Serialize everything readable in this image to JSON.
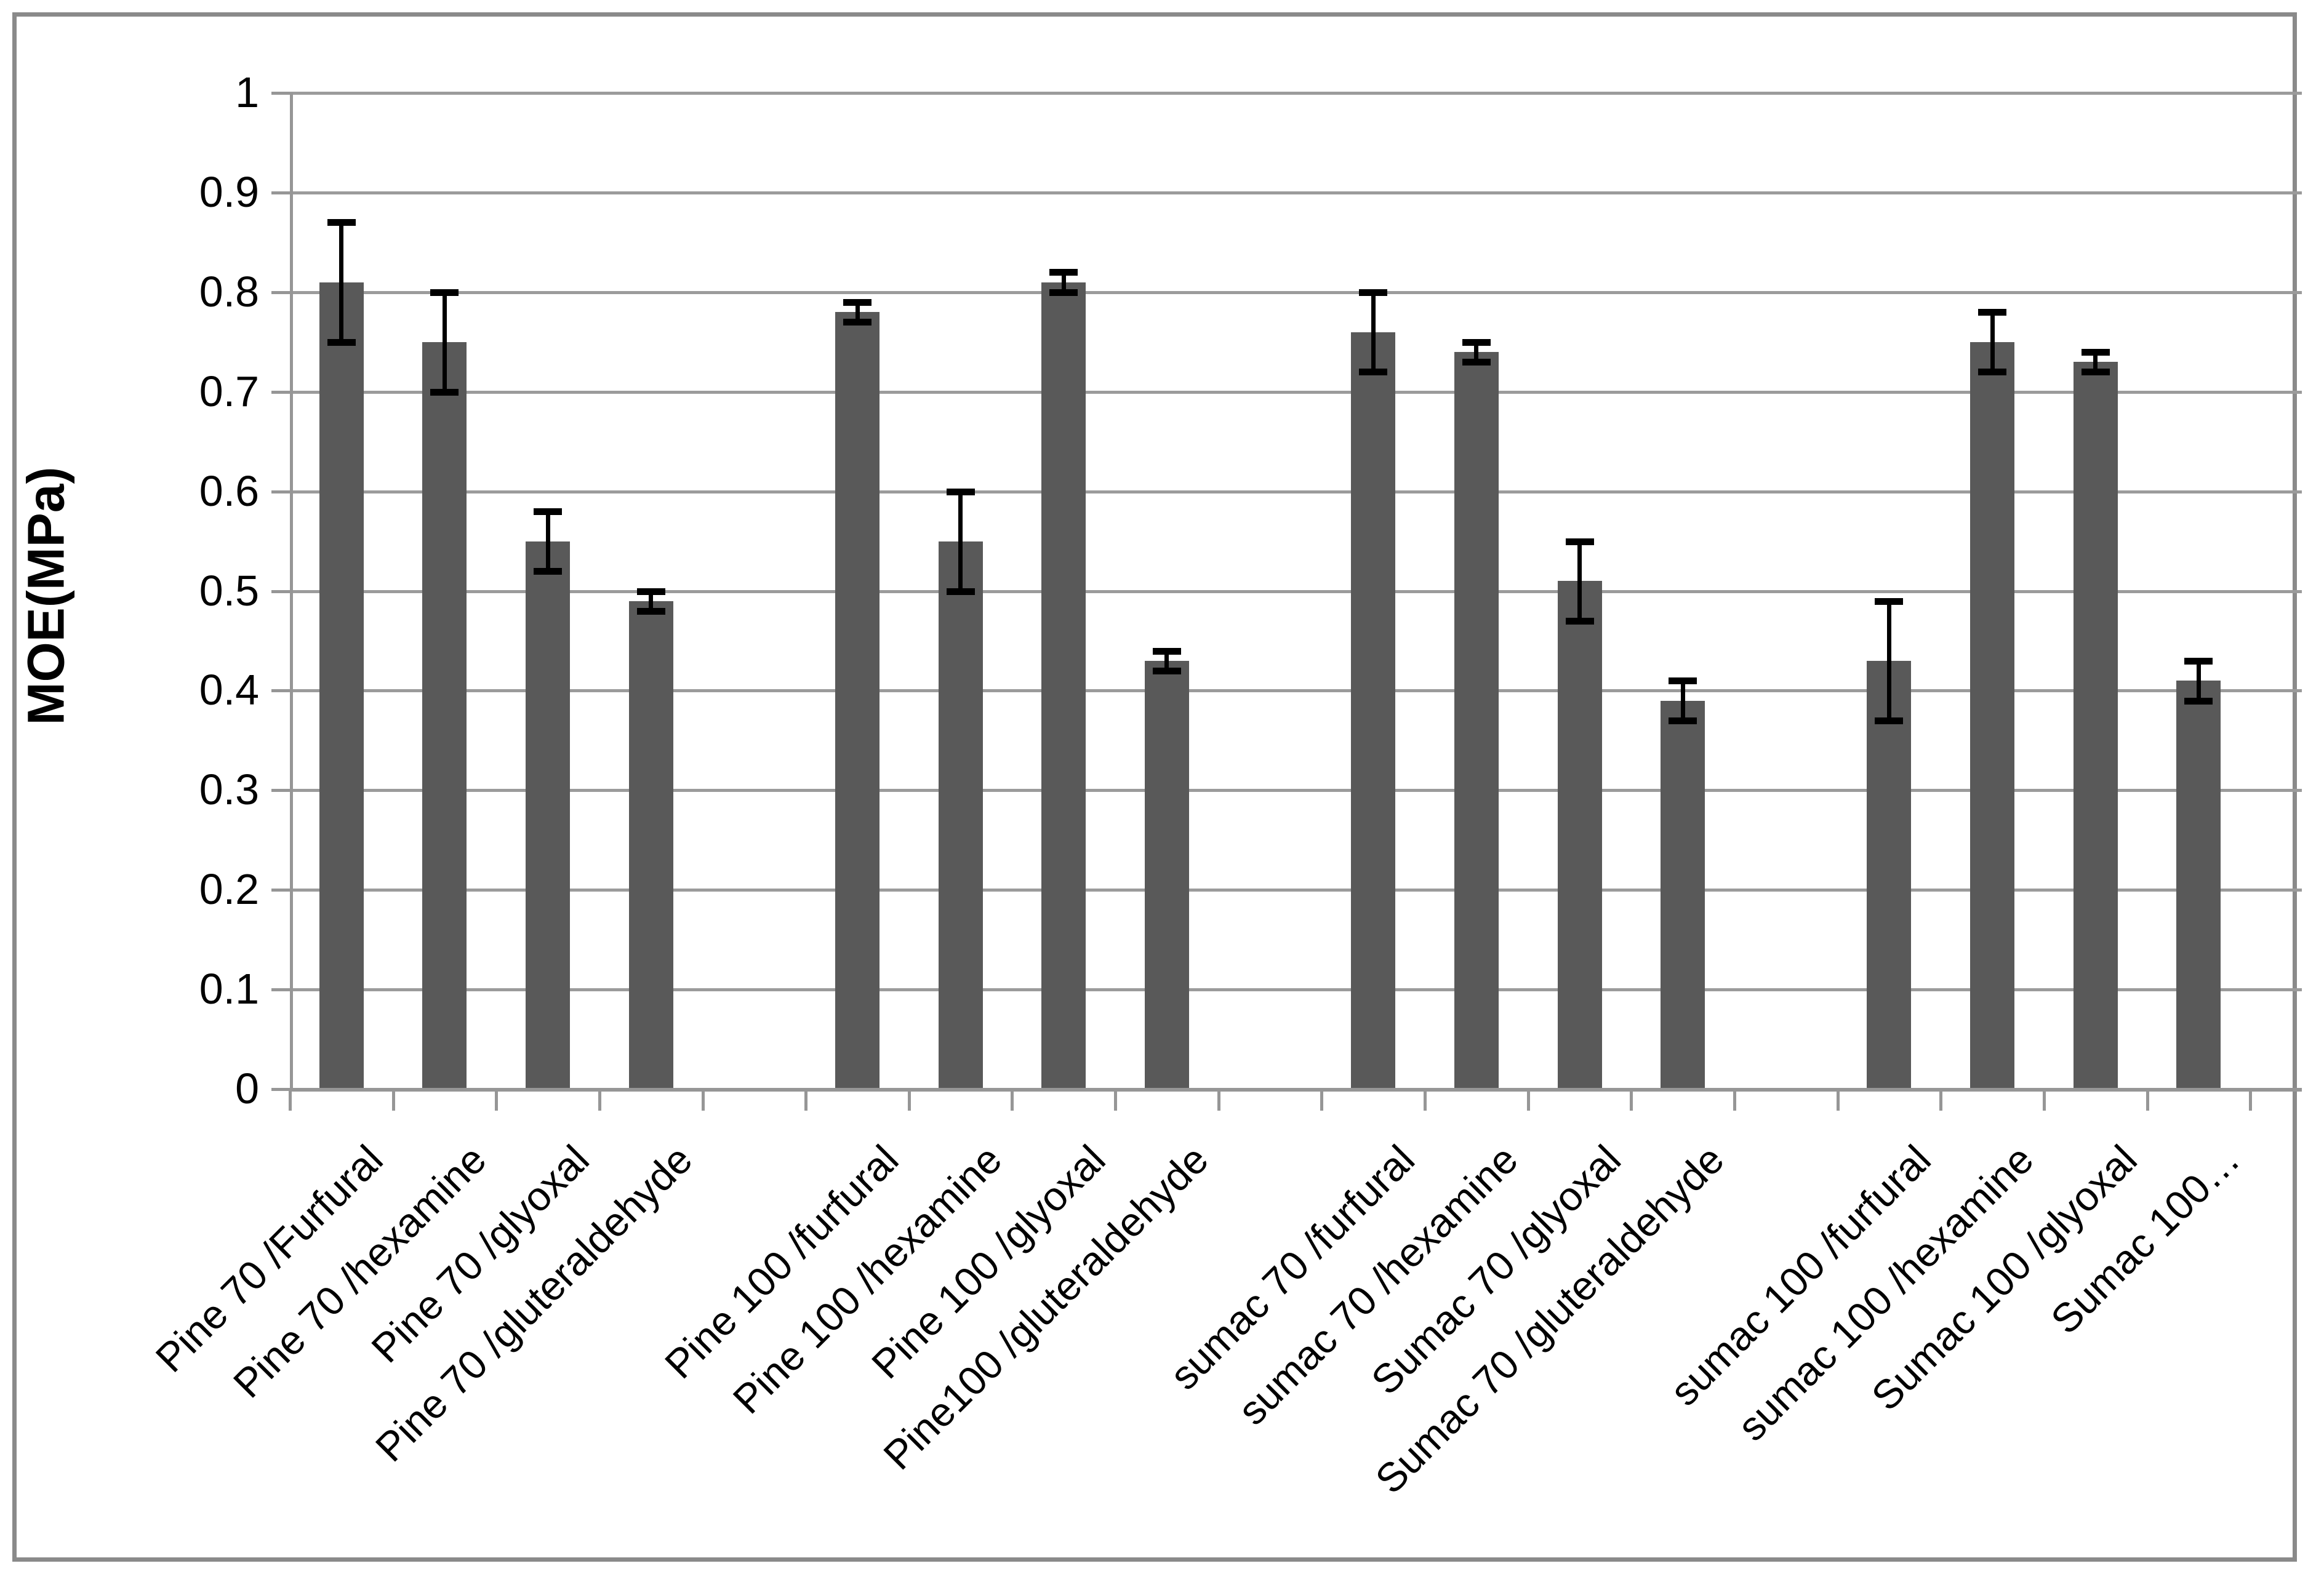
{
  "chart_data": {
    "type": "bar",
    "title": "",
    "ylabel": "MOE(MPa)",
    "xlabel": "",
    "ylim": [
      0,
      1
    ],
    "ytick_step": 0.1,
    "ytick_labels": [
      "0",
      "0.1",
      "0.2",
      "0.3",
      "0.4",
      "0.5",
      "0.6",
      "0.7",
      "0.8",
      "0.9",
      "1"
    ],
    "grid": true,
    "legend": false,
    "bar_color": "#595959",
    "gridline_color": "#9b9b9b",
    "axis_color": "#969696",
    "error_bar_color": "#000000",
    "group_size": 4,
    "categories": [
      "Pine 70 /Furfural",
      "Pine 70 /hexamine",
      "Pine 70 /glyoxal",
      "Pine 70 /gluteraldehyde",
      "Pine 100 /furfural",
      "Pine 100 /hexamine",
      "Pine 100 /glyoxal",
      "Pine100 /gluteraldehyde",
      "sumac 70 /furfural",
      "sumac 70 /hexamine",
      "Sumac 70 /glyoxal",
      "Sumac 70 /gluteraldehyde",
      "sumac 100 /furfural",
      "sumac 100 /hexamine",
      "Sumac 100 /glyoxal",
      "Sumac 100…"
    ],
    "values": [
      0.81,
      0.75,
      0.55,
      0.49,
      0.78,
      0.55,
      0.81,
      0.43,
      0.76,
      0.74,
      0.51,
      0.39,
      0.43,
      0.75,
      0.73,
      0.41
    ],
    "errors": [
      0.06,
      0.05,
      0.03,
      0.01,
      0.01,
      0.05,
      0.01,
      0.01,
      0.04,
      0.01,
      0.04,
      0.02,
      0.06,
      0.03,
      0.01,
      0.02
    ]
  }
}
